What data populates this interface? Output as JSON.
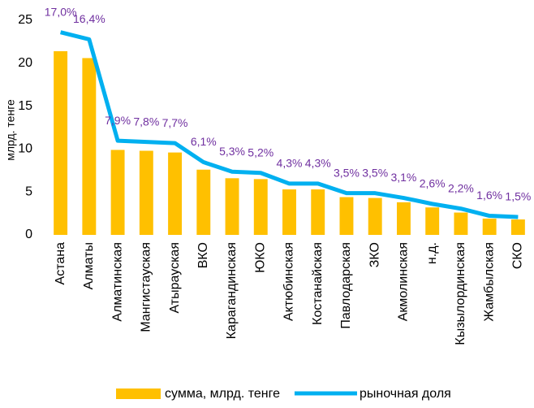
{
  "chart_data": {
    "type": "bar_line",
    "y_label": "млрд. тенге",
    "categories": [
      "Астана",
      "Алматы",
      "Алматинская",
      "Мангистауская",
      "Атырауская",
      "ВКО",
      "Карагандинская",
      "ЮКО",
      "Актюбинская",
      "Костанайская",
      "Павлодарская",
      "ЗКО",
      "Акмолинская",
      "н.д.",
      "Кызылординская",
      "Жамбылская",
      "СКО"
    ],
    "series": [
      {
        "name": "сумма, млрд. тенге",
        "color": "#ffc000",
        "type": "bar",
        "values": [
          21.4,
          20.6,
          9.9,
          9.8,
          9.6,
          7.6,
          6.6,
          6.5,
          5.3,
          5.3,
          4.4,
          4.3,
          3.8,
          3.2,
          2.6,
          1.9,
          1.8
        ]
      },
      {
        "name": "рыночная доля",
        "color": "#00b0f0",
        "type": "line",
        "axis": "y2",
        "values": [
          17.0,
          16.4,
          7.9,
          7.8,
          7.7,
          6.1,
          5.3,
          5.2,
          4.3,
          4.3,
          3.5,
          3.5,
          3.1,
          2.6,
          2.2,
          1.6,
          1.5
        ],
        "value_labels": [
          "17,0%",
          "16,4%",
          "7,9%",
          "7,8%",
          "7,7%",
          "6,1%",
          "5,3%",
          "5,2%",
          "4,3%",
          "4,3%",
          "3,5%",
          "3,5%",
          "3,1%",
          "2,6%",
          "2,2%",
          "1,6%",
          "1,5%"
        ]
      }
    ],
    "ylim": [
      0,
      25
    ],
    "yticks": [
      0,
      5,
      10,
      15,
      20,
      25
    ],
    "y2lim": [
      0,
      18
    ],
    "label_color": "#7030a0"
  }
}
